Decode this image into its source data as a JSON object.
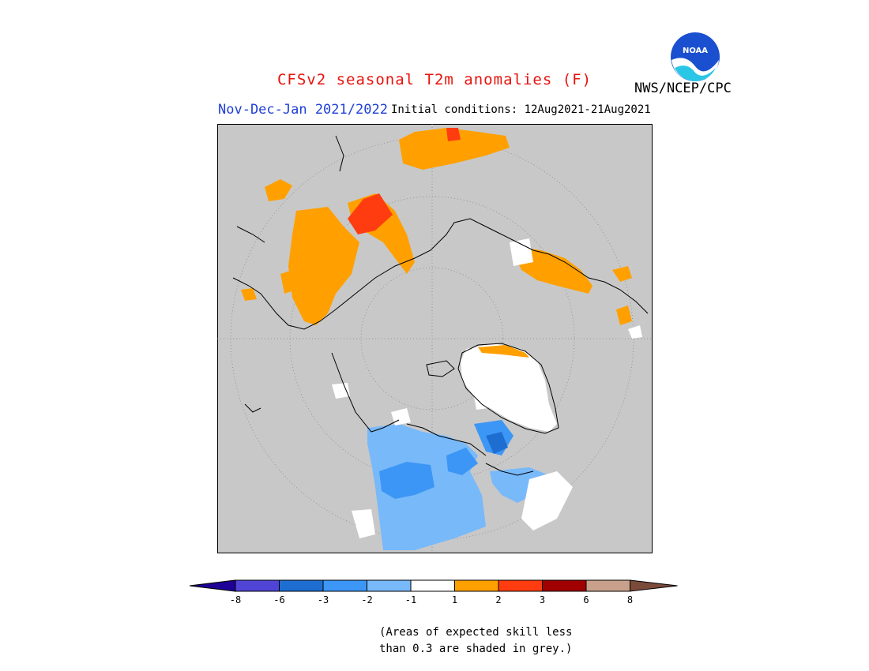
{
  "header": {
    "title": "CFSv2 seasonal T2m anomalies (F)",
    "season": "Nov-Dec-Jan 2021/2022",
    "initial_conditions": "Initial conditions: 12Aug2021-21Aug2021",
    "agency": "NWS/NCEP/CPC",
    "logo_text": "NOAA"
  },
  "map": {
    "projection": "north-polar-stereographic",
    "background_color": "#c8c8c8",
    "regions": [
      {
        "name": "Siberia / East Asia north",
        "category": "1 to 2",
        "color": "#ffa000"
      },
      {
        "name": "North-central Asia",
        "category": "2 to 3",
        "color": "#ff3c10"
      },
      {
        "name": "Scandinavia",
        "category": "1 to 2",
        "color": "#ffa000"
      },
      {
        "name": "Greenland",
        "category": "-1 to 1",
        "color": "#ffffff"
      },
      {
        "name": "Canada",
        "category": "-2 to -1",
        "color": "#78b9fa"
      },
      {
        "name": "Central Canada",
        "category": "-3 to -2",
        "color": "#3c96f5"
      },
      {
        "name": "Hudson Bay region",
        "category": "-6 to -3",
        "color": "#1e6ed2"
      }
    ]
  },
  "legend": {
    "colors": [
      "#1e0096",
      "#5044d6",
      "#1e6ed2",
      "#3c96f5",
      "#78b9fa",
      "#ffffff",
      "#ffa000",
      "#ff3c10",
      "#a00000",
      "#c8a08c",
      "#7a4a3a"
    ],
    "ticks": [
      "-8",
      "-6",
      "-3",
      "-2",
      "-1",
      "1",
      "2",
      "3",
      "6",
      "8"
    ]
  },
  "note": {
    "line1": "(Areas of expected skill less",
    "line2": "than 0.3 are shaded in grey.)"
  }
}
